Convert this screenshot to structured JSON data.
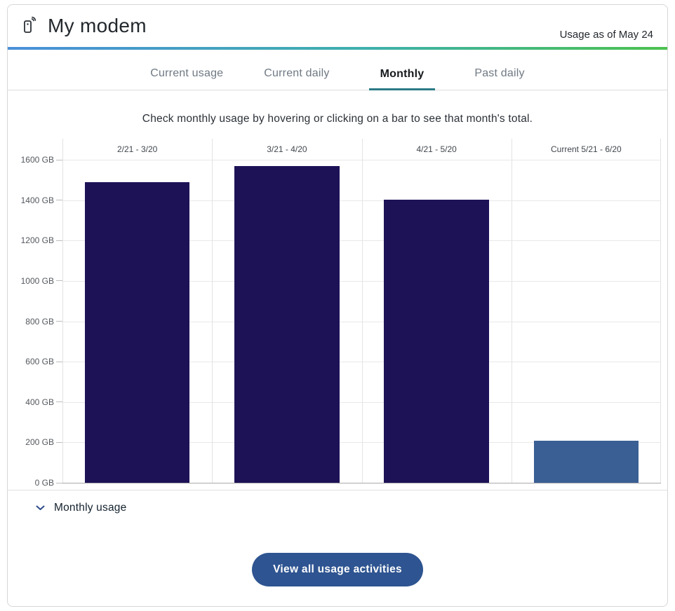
{
  "header": {
    "title": "My modem",
    "usage_note": "Usage as of May 24"
  },
  "accent": {
    "gradient_left": "#4a90d9",
    "gradient_mid": "#3fb0ab",
    "gradient_right": "#4cc24e",
    "active_tab_underline": "#2b7b86",
    "button_bg": "#2e5491",
    "bar_navy": "#1e1257",
    "bar_current_blue": "#3a5f94"
  },
  "tabs": [
    {
      "label": "Current usage",
      "active": false
    },
    {
      "label": "Current daily",
      "active": false
    },
    {
      "label": "Monthly",
      "active": true
    },
    {
      "label": "Past daily",
      "active": false
    }
  ],
  "instruction": "Check monthly usage by hovering or clicking on a bar to see that month's total.",
  "chart_data": {
    "type": "bar",
    "title": "",
    "categories": [
      "2/21 - 3/20",
      "3/21 - 4/20",
      "4/21 - 5/20",
      "Current 5/21 - 6/20"
    ],
    "values": [
      1489,
      1568,
      1403,
      210
    ],
    "unit": "GB",
    "xlabel": "",
    "ylabel": "",
    "ylim": [
      0,
      1600
    ],
    "ytick_step": 200,
    "ytick_labels": [
      "1600 GB",
      "1400 GB",
      "1200 GB",
      "1000 GB",
      "800 GB",
      "600 GB",
      "400 GB",
      "200 GB",
      "0 GB"
    ],
    "bar_colors": [
      "#1e1257",
      "#1e1257",
      "#1e1257",
      "#3a5f94"
    ],
    "grid": true,
    "legend": null
  },
  "monthly_usage_section": {
    "label": "Monthly usage",
    "chevron_icon": "chevron-down-icon"
  },
  "footer": {
    "view_all_label": "View all usage activities"
  }
}
